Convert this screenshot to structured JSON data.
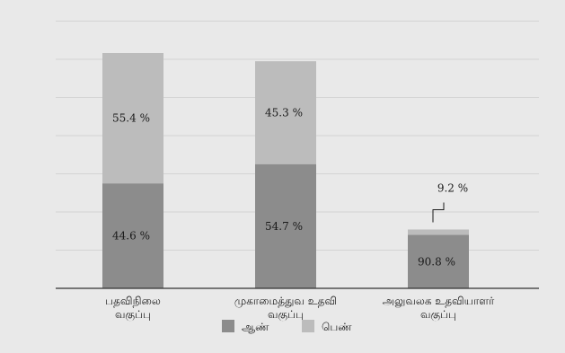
{
  "chart_data": {
    "type": "bar",
    "stacked": true,
    "percent_stacked": true,
    "categories": [
      [
        "பதவிநிலை",
        "வகுப்பு"
      ],
      [
        "முகாமைத்துவ உதவி",
        "வகுப்பு"
      ],
      [
        "அலுவலக உதவியாளர்",
        "வகுப்பு"
      ]
    ],
    "bar_totals_relative": [
      100,
      96.5,
      25
    ],
    "series": [
      {
        "name": "ஆண்",
        "values": [
          44.6,
          54.7,
          90.8
        ],
        "labels": [
          "44.6 %",
          "54.7 %",
          "90.8 %"
        ]
      },
      {
        "name": "பெண்",
        "values": [
          55.4,
          45.3,
          9.2
        ],
        "labels": [
          "55.4 %",
          "45.3 %",
          "9.2 %"
        ]
      }
    ],
    "title": "",
    "xlabel": "",
    "ylabel": "",
    "grid": true,
    "y_axis_labels": false,
    "legend_position": "bottom-center",
    "colors": {
      "male": "#8c8c8c",
      "female": "#bcbcbc",
      "background": "#e9e9e9",
      "grid": "#d4d4d4"
    }
  }
}
